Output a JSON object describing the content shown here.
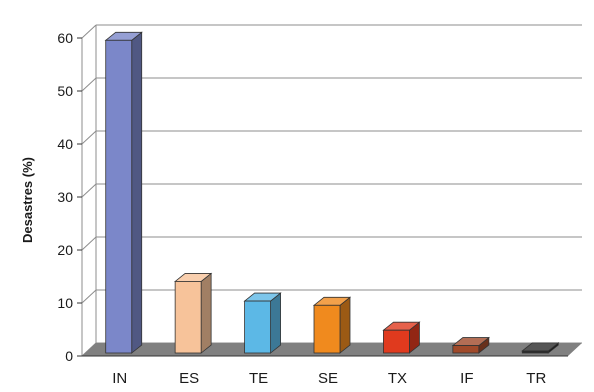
{
  "chart_data": {
    "type": "bar",
    "style": "3d",
    "categories": [
      "IN",
      "ES",
      "TE",
      "SE",
      "TX",
      "IF",
      "TR"
    ],
    "values": [
      59,
      13.5,
      9.8,
      9,
      4.3,
      1.4,
      0.4
    ],
    "ylabel": "Desastres (%)",
    "xlabel": "",
    "ylim": [
      0,
      60
    ],
    "yticks": [
      0,
      10,
      20,
      30,
      40,
      50,
      60
    ],
    "grid": true,
    "legend": "none",
    "colors": [
      "#7b87c9",
      "#f7c39a",
      "#5cb8e6",
      "#f08a1e",
      "#e03a1e",
      "#a04a2a",
      "#2b2b2b"
    ],
    "floor_color": "#808080",
    "grid_color": "#8c8c8c"
  }
}
